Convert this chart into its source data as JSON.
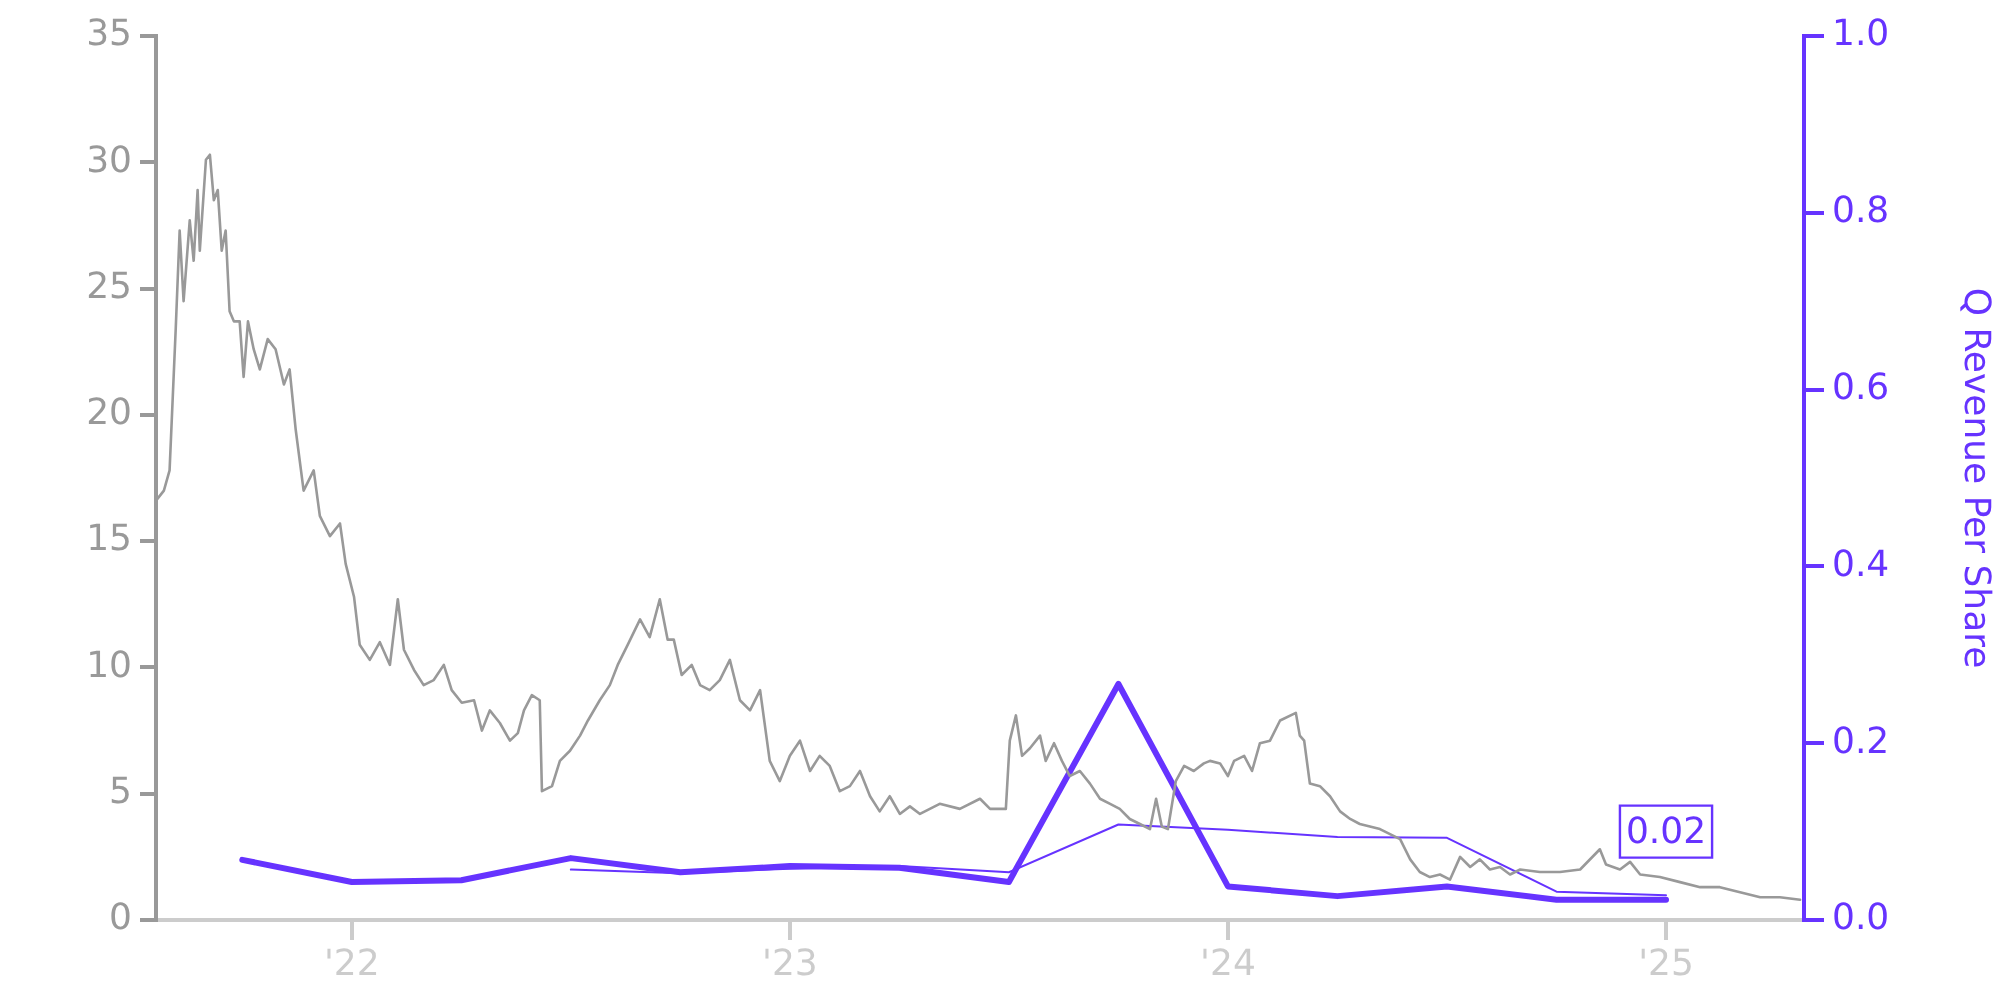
{
  "chart_data": {
    "type": "line",
    "y2label": "Q Revenue Per Share",
    "xlim": [
      2021.553,
      2025.315
    ],
    "xticks": [
      {
        "value": 2022,
        "label": "'22"
      },
      {
        "value": 2023,
        "label": "'23"
      },
      {
        "value": 2024,
        "label": "'24"
      },
      {
        "value": 2025,
        "label": "'25"
      }
    ],
    "ylim": [
      0,
      35
    ],
    "yticks": [
      0,
      5,
      10,
      15,
      20,
      25,
      30,
      35
    ],
    "y2lim": [
      0,
      1
    ],
    "y2ticks": [
      {
        "value": 0,
        "label": "0.0"
      },
      {
        "value": 0.2,
        "label": "0.2"
      },
      {
        "value": 0.4,
        "label": "0.4"
      },
      {
        "value": 0.6,
        "label": "0.6"
      },
      {
        "value": 0.8,
        "label": "0.8"
      },
      {
        "value": 1,
        "label": "1.0"
      }
    ],
    "grid": false,
    "legend": false,
    "marker": "none",
    "line_style": "solid",
    "series": [
      {
        "color": "#999999",
        "x": [
          2021.553,
          2021.571,
          2021.584,
          2021.598,
          2021.607,
          2021.616,
          2021.63,
          2021.639,
          2021.648,
          2021.653,
          2021.667,
          2021.676,
          2021.685,
          2021.694,
          2021.703,
          2021.712,
          2021.721,
          2021.731,
          2021.744,
          2021.753,
          2021.763,
          2021.776,
          2021.79,
          2021.808,
          2021.826,
          2021.845,
          2021.858,
          2021.872,
          2021.89,
          2021.913,
          2021.927,
          2021.95,
          2021.973,
          2021.986,
          2022.005,
          2022.018,
          2022.041,
          2022.064,
          2022.087,
          2022.105,
          2022.119,
          2022.142,
          2022.164,
          2022.187,
          2022.21,
          2022.228,
          2022.251,
          2022.279,
          2022.297,
          2022.315,
          2022.338,
          2022.361,
          2022.379,
          2022.393,
          2022.411,
          2022.429,
          2022.434,
          2022.457,
          2022.475,
          2022.498,
          2022.521,
          2022.539,
          2022.566,
          2022.589,
          2022.607,
          2022.63,
          2022.658,
          2022.68,
          2022.703,
          2022.721,
          2022.735,
          2022.753,
          2022.776,
          2022.795,
          2022.817,
          2022.84,
          2022.863,
          2022.886,
          2022.909,
          2022.932,
          2022.954,
          2022.977,
          2023.0,
          2023.023,
          2023.046,
          2023.068,
          2023.091,
          2023.114,
          2023.137,
          2023.16,
          2023.183,
          2023.205,
          2023.228,
          2023.251,
          2023.274,
          2023.297,
          2023.342,
          2023.388,
          2023.434,
          2023.457,
          2023.493,
          2023.502,
          2023.516,
          2023.53,
          2023.548,
          2023.571,
          2023.584,
          2023.603,
          2023.621,
          2023.639,
          2023.662,
          2023.685,
          2023.708,
          2023.731,
          2023.753,
          2023.776,
          2023.799,
          2023.822,
          2023.836,
          2023.849,
          2023.863,
          2023.881,
          2023.9,
          2023.922,
          2023.945,
          2023.959,
          2023.982,
          2024.0,
          2024.014,
          2024.037,
          2024.055,
          2024.073,
          2024.096,
          2024.119,
          2024.155,
          2024.164,
          2024.174,
          2024.187,
          2024.21,
          2024.233,
          2024.256,
          2024.279,
          2024.301,
          2024.347,
          2024.393,
          2024.416,
          2024.438,
          2024.461,
          2024.484,
          2024.507,
          2024.53,
          2024.553,
          2024.575,
          2024.598,
          2024.621,
          2024.644,
          2024.667,
          2024.712,
          2024.758,
          2024.804,
          2024.849,
          2024.863,
          2024.895,
          2024.918,
          2024.941,
          2024.986,
          2025.032,
          2025.078,
          2025.123,
          2025.169,
          2025.215,
          2025.26,
          2025.306
        ],
        "values": [
          16.6,
          17.0,
          17.8,
          23.4,
          27.3,
          24.5,
          27.7,
          26.1,
          28.9,
          26.5,
          30.1,
          30.3,
          28.5,
          28.9,
          26.5,
          27.3,
          24.1,
          23.7,
          23.7,
          21.5,
          23.7,
          22.6,
          21.8,
          23.0,
          22.6,
          21.2,
          21.8,
          19.4,
          17.0,
          17.8,
          16.0,
          15.2,
          15.7,
          14.1,
          12.8,
          10.9,
          10.3,
          11.0,
          10.1,
          12.7,
          10.7,
          9.9,
          9.3,
          9.5,
          10.1,
          9.1,
          8.6,
          8.7,
          7.5,
          8.3,
          7.8,
          7.1,
          7.4,
          8.3,
          8.9,
          8.7,
          5.1,
          5.3,
          6.3,
          6.7,
          7.3,
          7.9,
          8.7,
          9.3,
          10.1,
          10.9,
          11.9,
          11.2,
          12.7,
          11.1,
          11.1,
          9.7,
          10.1,
          9.3,
          9.1,
          9.5,
          10.3,
          8.7,
          8.3,
          9.1,
          6.3,
          5.5,
          6.5,
          7.1,
          5.9,
          6.5,
          6.1,
          5.1,
          5.3,
          5.9,
          4.9,
          4.3,
          4.9,
          4.2,
          4.5,
          4.2,
          4.6,
          4.4,
          4.8,
          4.4,
          4.4,
          7.1,
          8.1,
          6.5,
          6.8,
          7.3,
          6.3,
          7.0,
          6.3,
          5.7,
          5.9,
          5.4,
          4.8,
          4.6,
          4.4,
          4.0,
          3.8,
          3.6,
          4.8,
          3.7,
          3.6,
          5.5,
          6.1,
          5.9,
          6.2,
          6.3,
          6.2,
          5.7,
          6.3,
          6.5,
          5.9,
          7.0,
          7.1,
          7.9,
          8.2,
          7.3,
          7.1,
          5.4,
          5.3,
          4.9,
          4.3,
          4.0,
          3.8,
          3.6,
          3.2,
          2.4,
          1.9,
          1.7,
          1.8,
          1.6,
          2.5,
          2.1,
          2.4,
          2.0,
          2.1,
          1.8,
          2.0,
          1.9,
          1.9,
          2.0,
          2.8,
          2.2,
          2.0,
          2.3,
          1.8,
          1.7,
          1.5,
          1.3,
          1.3,
          1.1,
          0.9,
          0.9,
          0.8
        ]
      },
      {
        "color": "#6633ff",
        "axis": "y2",
        "x": [
          2021.75,
          2022.0,
          2022.25,
          2022.5,
          2022.75,
          2023.0,
          2023.25,
          2023.5,
          2023.75,
          2024.0,
          2024.25,
          2024.5,
          2024.75,
          2025.0
        ],
        "values": [
          0.068,
          0.043,
          0.045,
          0.07,
          0.054,
          0.061,
          0.059,
          0.043,
          0.267,
          0.038,
          0.027,
          0.038,
          0.023,
          0.023
        ],
        "value_labels": [
          null,
          null,
          null,
          null,
          null,
          null,
          null,
          null,
          null,
          null,
          null,
          null,
          null,
          "0.02"
        ]
      },
      {
        "color": "#6633ff",
        "axis": "y2",
        "x": [
          2022.5,
          2022.75,
          2023.0,
          2023.25,
          2023.5,
          2023.75,
          2024.0,
          2024.25,
          2024.5,
          2024.75,
          2025.0
        ],
        "values": [
          0.057,
          0.053,
          0.058,
          0.061,
          0.054,
          0.108,
          0.102,
          0.094,
          0.093,
          0.032,
          0.028
        ]
      }
    ]
  }
}
